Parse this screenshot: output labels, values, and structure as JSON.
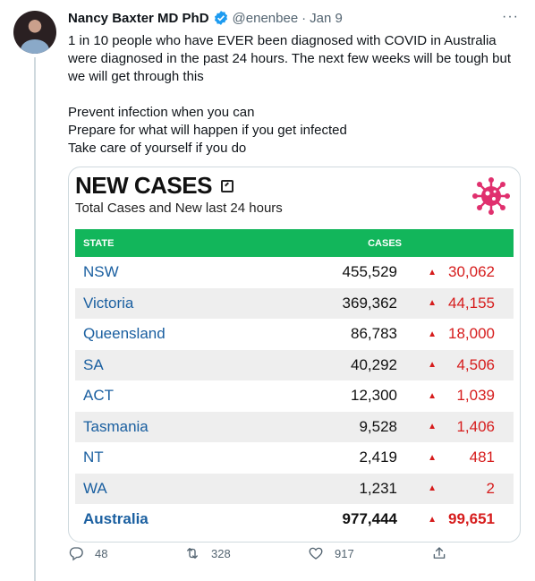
{
  "tweet": {
    "author_name": "Nancy Baxter MD PhD",
    "handle": "@enenbee",
    "separator": "·",
    "date": "Jan 9",
    "more_label": "···",
    "text_p1": "1 in 10 people who have EVER been diagnosed with COVID in Australia were diagnosed in the past 24 hours.  The next few weeks will be tough but we will get through this",
    "text_p2": "Prevent infection when you can\nPrepare for what will happen if you get infected\nTake care of yourself if you do"
  },
  "card": {
    "title": "NEW CASES",
    "subtitle": "Total Cases and New last 24 hours",
    "header_state": "STATE",
    "header_cases": "CASES",
    "rows": [
      {
        "state": "NSW",
        "total": "455,529",
        "arrow": "▲",
        "delta": "30,062"
      },
      {
        "state": "Victoria",
        "total": "369,362",
        "arrow": "▲",
        "delta": "44,155"
      },
      {
        "state": "Queensland",
        "total": "86,783",
        "arrow": "▲",
        "delta": "18,000"
      },
      {
        "state": "SA",
        "total": "40,292",
        "arrow": "▲",
        "delta": "4,506"
      },
      {
        "state": "ACT",
        "total": "12,300",
        "arrow": "▲",
        "delta": "1,039"
      },
      {
        "state": "Tasmania",
        "total": "9,528",
        "arrow": "▲",
        "delta": "1,406"
      },
      {
        "state": "NT",
        "total": "2,419",
        "arrow": "▲",
        "delta": "481"
      },
      {
        "state": "WA",
        "total": "1,231",
        "arrow": "▲",
        "delta": "2"
      },
      {
        "state": "Australia",
        "total": "977,444",
        "arrow": "▲",
        "delta": "99,651"
      }
    ]
  },
  "actions": {
    "reply_count": "48",
    "retweet_count": "328",
    "like_count": "917"
  },
  "colors": {
    "header_green": "#12b65b",
    "state_blue": "#1a5fa0",
    "delta_red": "#d61c1c",
    "verified_blue": "#1d9bf0",
    "virus_pink": "#e0306e"
  },
  "icons": [
    "verified-badge-icon",
    "more-icon",
    "expand-icon",
    "virus-icon",
    "reply-icon",
    "retweet-icon",
    "like-icon",
    "share-icon"
  ]
}
